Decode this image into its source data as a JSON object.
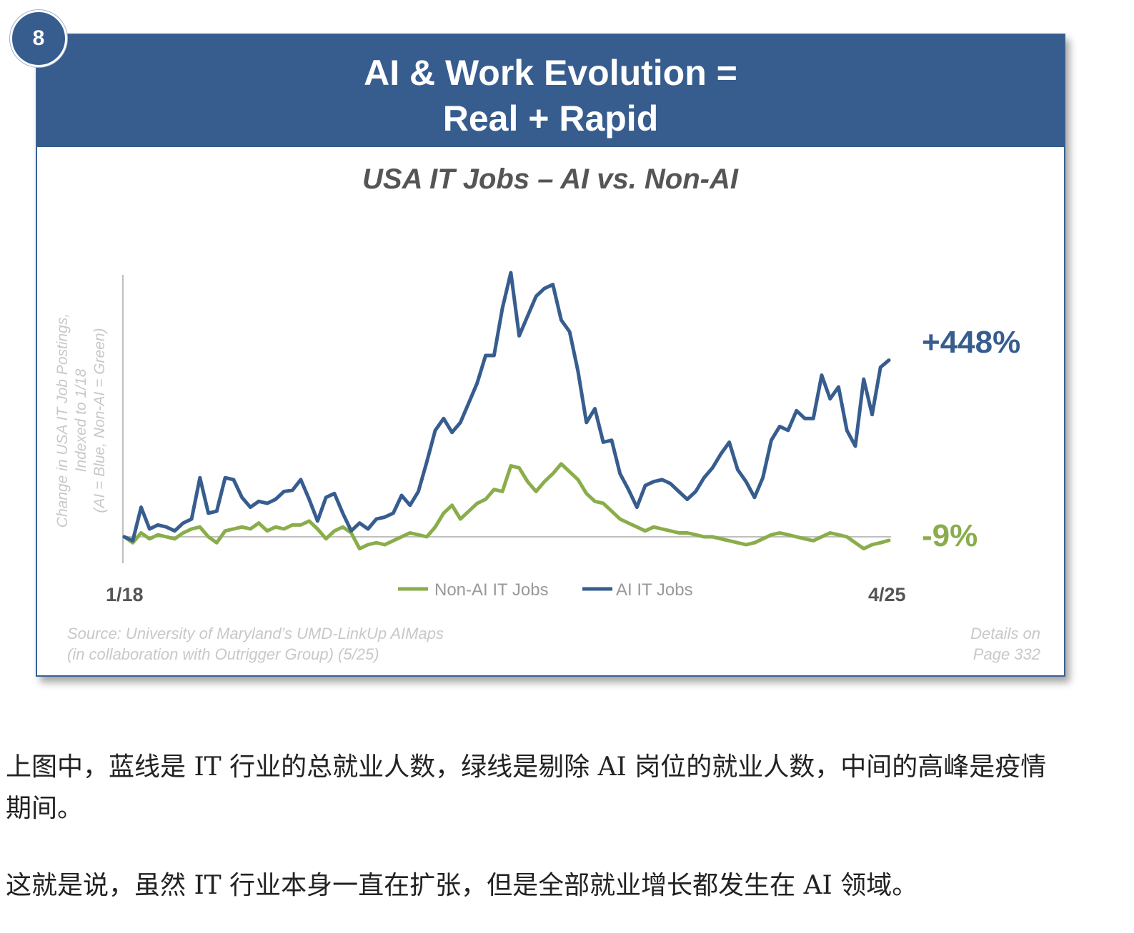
{
  "badge": {
    "number": "8"
  },
  "banner": {
    "line1": "AI & Work Evolution =",
    "line2": "Real + Rapid"
  },
  "chart_data": {
    "type": "line",
    "title": "USA IT Jobs – AI vs. Non-AI",
    "ylabel_lines": [
      "Change in USA IT Job Postings,",
      "Indexed to 1/18",
      "(AI = Blue, Non-AI = Green)"
    ],
    "x_start_label": "1/18",
    "x_end_label": "4/25",
    "ylim": [
      -50,
      600
    ],
    "series": [
      {
        "name": "AI IT Jobs",
        "color": "#375d8f",
        "end_label": "+448%",
        "values": [
          0,
          -10,
          75,
          20,
          30,
          25,
          15,
          35,
          45,
          150,
          60,
          65,
          150,
          145,
          100,
          75,
          90,
          85,
          95,
          115,
          118,
          145,
          95,
          40,
          100,
          110,
          60,
          15,
          35,
          20,
          45,
          50,
          60,
          105,
          80,
          115,
          190,
          270,
          300,
          265,
          290,
          340,
          390,
          460,
          460,
          580,
          670,
          510,
          560,
          610,
          630,
          640,
          550,
          520,
          420,
          290,
          325,
          240,
          245,
          160,
          120,
          75,
          130,
          140,
          145,
          135,
          115,
          95,
          115,
          150,
          175,
          210,
          240,
          170,
          140,
          100,
          150,
          245,
          280,
          270,
          320,
          300,
          300,
          410,
          350,
          380,
          270,
          230,
          400,
          310,
          430,
          448
        ]
      },
      {
        "name": "Non-AI IT Jobs",
        "color": "#8aad4c",
        "end_label": "-9%",
        "values": [
          0,
          -15,
          10,
          -5,
          5,
          0,
          -5,
          10,
          20,
          25,
          0,
          -15,
          15,
          20,
          25,
          20,
          35,
          15,
          25,
          20,
          30,
          30,
          40,
          20,
          -5,
          15,
          25,
          10,
          -30,
          -20,
          -15,
          -20,
          -10,
          0,
          10,
          5,
          0,
          25,
          60,
          80,
          45,
          65,
          85,
          95,
          120,
          115,
          180,
          175,
          140,
          115,
          140,
          160,
          185,
          165,
          145,
          110,
          90,
          85,
          65,
          45,
          35,
          25,
          15,
          25,
          20,
          15,
          10,
          10,
          5,
          0,
          0,
          -5,
          -10,
          -15,
          -20,
          -15,
          -5,
          5,
          10,
          5,
          0,
          -5,
          -10,
          0,
          10,
          5,
          0,
          -15,
          -30,
          -20,
          -15,
          -9
        ]
      }
    ],
    "legend": [
      "Non-AI IT Jobs",
      "AI IT Jobs"
    ],
    "source_line1": "Source: University of Maryland’s UMD-LinkUp AIMaps",
    "source_line2": "(in collaboration with Outrigger Group) (5/25)",
    "details_line1": "Details on",
    "details_line2": "Page 332"
  },
  "article": {
    "para1_line1": "上图中，蓝线是 IT 行业的总就业人数，绿线是剔除 AI 岗位的就业人数，中间的高峰是疫情",
    "para1_line2": "期间。",
    "para2": "这就是说，虽然 IT 行业本身一直在扩张，但是全部就业增长都发生在 AI 领域。"
  }
}
